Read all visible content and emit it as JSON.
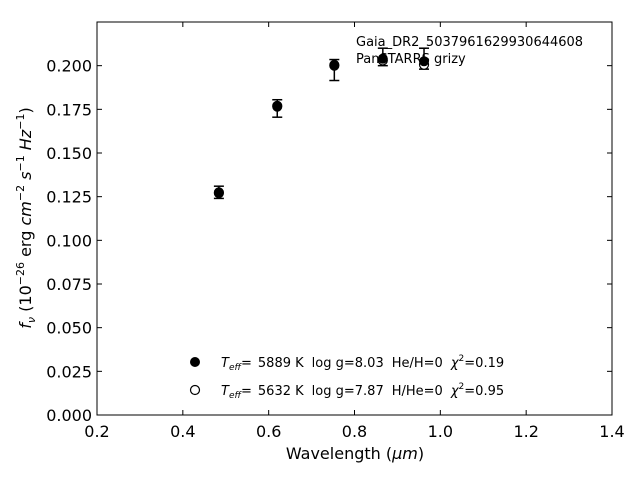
{
  "chart_data": {
    "type": "scatter",
    "xlabel_prefix": "Wavelength (",
    "xlabel_unit": "μm",
    "xlabel_suffix": ")",
    "ylabel_f": "f",
    "ylabel_sub": "ν",
    "ylabel_open": " (10",
    "ylabel_exp1": "−26",
    "ylabel_erg": " erg ",
    "ylabel_cm": "cm",
    "ylabel_exp2": "−2",
    "ylabel_s": " s",
    "ylabel_exp3": "−1",
    "ylabel_hz": " Hz",
    "ylabel_exp4": "−1",
    "ylabel_close": ")",
    "xlim": [
      0.2,
      1.4
    ],
    "ylim": [
      0.0,
      0.225
    ],
    "xticks": [
      0.2,
      0.4,
      0.6,
      0.8,
      1.0,
      1.2,
      1.4
    ],
    "xtick_labels": [
      "0.2",
      "0.4",
      "0.6",
      "0.8",
      "1.0",
      "1.2",
      "1.4"
    ],
    "yticks": [
      0.0,
      0.025,
      0.05,
      0.075,
      0.1,
      0.125,
      0.15,
      0.175,
      0.2
    ],
    "ytick_labels": [
      "0.000",
      "0.025",
      "0.050",
      "0.075",
      "0.100",
      "0.125",
      "0.150",
      "0.175",
      "0.200"
    ],
    "grid": false,
    "annotations": [
      "Gaia_DR2_5037961629930644608",
      "PanSTARRS grizy"
    ],
    "observed": {
      "x": [
        0.484,
        0.62,
        0.753,
        0.866,
        0.962
      ],
      "y": [
        0.1275,
        0.1755,
        0.1975,
        0.205,
        0.204
      ],
      "yerr_low": [
        0.0035,
        0.005,
        0.006,
        0.005,
        0.006
      ],
      "yerr_high": [
        0.0035,
        0.005,
        0.006,
        0.005,
        0.006
      ]
    },
    "series": [
      {
        "marker": "filled",
        "x": [
          0.484,
          0.62,
          0.753,
          0.866,
          0.962
        ],
        "y": [
          0.1275,
          0.1765,
          0.2005,
          0.204,
          0.2025
        ],
        "legend_teff": "5889",
        "legend_logg": "8.03",
        "legend_comp": "He/H=0",
        "legend_chi2": "0.19"
      },
      {
        "marker": "open",
        "x": [
          0.484,
          0.62,
          0.753,
          0.866,
          0.962
        ],
        "y": [
          0.127,
          0.177,
          0.2,
          0.203,
          0.2005
        ],
        "legend_teff": "5632",
        "legend_logg": "7.87",
        "legend_comp": "H/He=0",
        "legend_chi2": "0.95"
      }
    ],
    "legend_labels": {
      "T": "T",
      "eff": "eff",
      "eq": "=",
      "K": " K",
      "logg": "log g=",
      "chi": "χ",
      "sq": "2",
      "eq2": "="
    }
  }
}
